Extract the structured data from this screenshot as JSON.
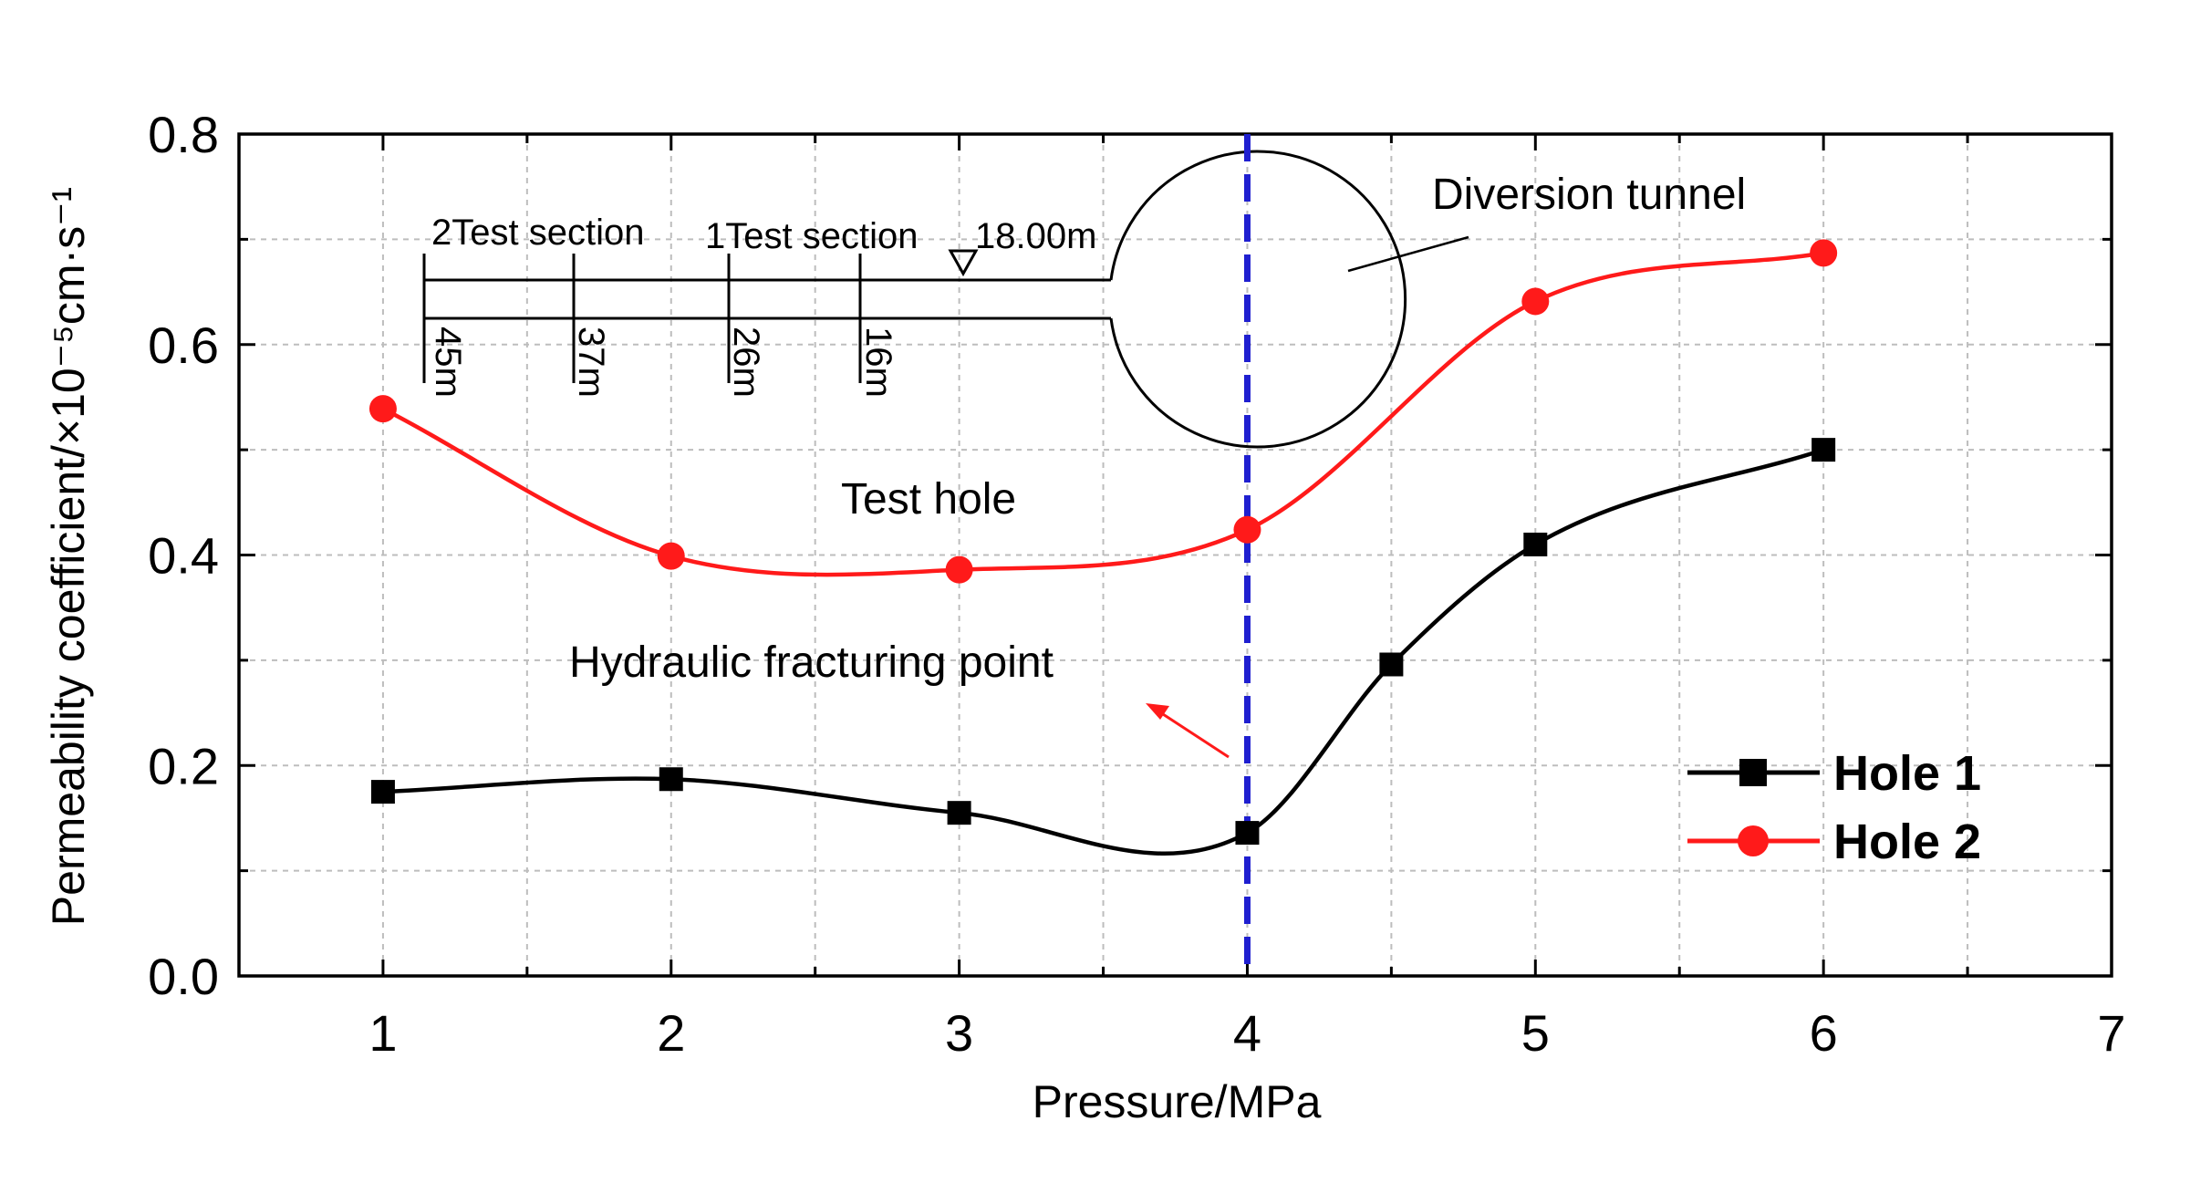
{
  "chart_data": {
    "type": "line",
    "xlabel": "Pressure/MPa",
    "ylabel_main": "Permeability coefficient/",
    "ylabel_unit": "×10⁻⁵cm·s⁻¹",
    "xlim": [
      0.5,
      7
    ],
    "ylim": [
      0,
      0.8
    ],
    "x_ticks": [
      1,
      2,
      3,
      4,
      5,
      6,
      7
    ],
    "x_tick_labels": [
      "1",
      "2",
      "3",
      "4",
      "5",
      "6",
      "7"
    ],
    "y_ticks": [
      0.0,
      0.2,
      0.4,
      0.6,
      0.8
    ],
    "y_tick_labels": [
      "0.0",
      "0.2",
      "0.4",
      "0.6",
      "0.8"
    ],
    "grid": true,
    "legend_position": "lower-right",
    "series": [
      {
        "name": "Hole 1",
        "color": "#000000",
        "marker": "square",
        "x": [
          1,
          2,
          3,
          4,
          4.5,
          5,
          6
        ],
        "values": [
          0.175,
          0.187,
          0.155,
          0.136,
          0.296,
          0.41,
          0.5
        ]
      },
      {
        "name": "Hole 2",
        "color": "#ff1a1a",
        "marker": "circle",
        "x": [
          1,
          2,
          3,
          4,
          5,
          6
        ],
        "values": [
          0.539,
          0.399,
          0.386,
          0.424,
          0.641,
          0.687
        ]
      }
    ],
    "vertical_line": {
      "x": 4,
      "color": "#1f1fd0",
      "style": "dashed"
    },
    "annotations": {
      "fracturing_point": "Hydraulic fracturing point",
      "test_hole": "Test hole",
      "diversion_tunnel": "Diversion tunnel"
    },
    "inset": {
      "section_labels": [
        "2Test section",
        "1Test section"
      ],
      "elevation_label": "18.00m",
      "depth_labels": [
        "45m",
        "37m",
        "26m",
        "16m"
      ]
    }
  }
}
